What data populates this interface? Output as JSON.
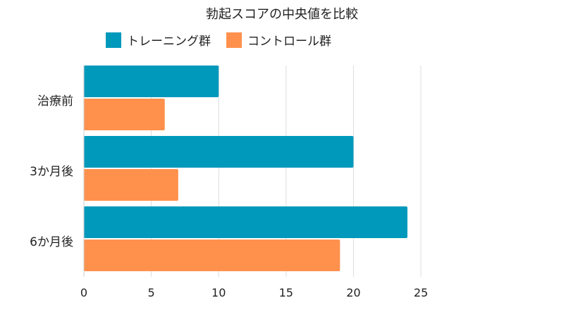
{
  "chart_data": {
    "type": "bar",
    "orientation": "horizontal",
    "title": "勃起スコアの中央値を比較",
    "categories": [
      "治療前",
      "3か月後",
      "6か月後"
    ],
    "series": [
      {
        "name": "トレーニング群",
        "values": [
          10,
          20,
          24
        ],
        "color": "#0099BB"
      },
      {
        "name": "コントロール群",
        "values": [
          6,
          7,
          19
        ],
        "color": "#FF914D"
      }
    ],
    "xlim": [
      0,
      25
    ],
    "xticks": [
      "0",
      "5",
      "10",
      "15",
      "20",
      "25"
    ],
    "xlabel": "",
    "ylabel": "",
    "grid": true,
    "legend_position": "top"
  }
}
